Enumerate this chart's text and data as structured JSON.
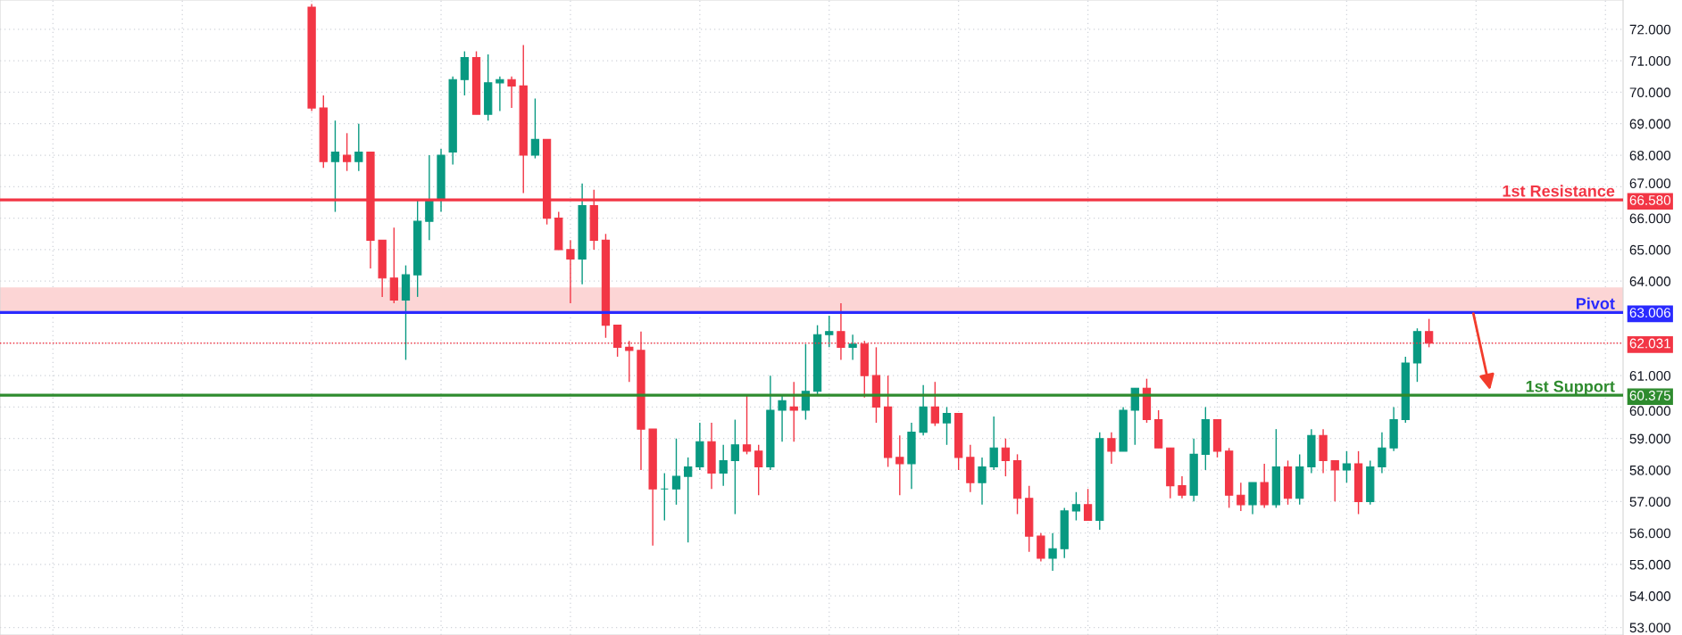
{
  "chart_data": {
    "type": "candlestick",
    "categories": [
      null,
      null,
      null,
      null,
      null,
      null,
      null,
      null,
      null,
      null,
      null,
      null,
      null,
      null,
      null,
      null,
      null,
      null,
      null,
      null,
      null,
      null,
      null,
      null,
      null,
      null,
      null,
      null,
      null,
      null,
      null,
      null,
      null,
      null,
      null,
      null,
      null,
      null,
      null,
      null,
      null,
      null,
      null,
      null,
      null,
      null,
      null,
      null,
      null,
      null,
      null,
      null,
      null,
      null,
      null,
      null,
      null,
      null,
      null,
      null,
      null,
      null,
      null,
      null,
      null,
      null,
      null,
      null,
      null,
      null,
      null,
      null,
      null,
      null,
      null,
      null,
      null,
      null,
      null,
      null,
      null,
      null,
      null,
      null,
      null,
      null,
      null,
      null,
      null,
      null,
      null,
      null,
      null,
      null,
      null,
      null,
      null,
      null,
      null,
      null,
      null,
      null,
      null,
      null,
      null,
      null,
      null,
      null,
      null,
      null,
      null,
      null,
      null,
      null,
      null,
      null,
      null,
      null,
      null,
      null,
      null,
      null,
      null,
      null,
      null,
      null,
      null,
      null,
      null,
      null,
      null,
      null,
      null,
      null,
      null,
      null,
      null,
      null
    ],
    "ohlc": [
      null,
      null,
      null,
      null,
      null,
      null,
      null,
      null,
      null,
      null,
      null,
      null,
      null,
      null,
      null,
      null,
      null,
      null,
      null,
      null,
      null,
      null,
      null,
      null,
      null,
      null,
      [
        72.7,
        72.8,
        69.4,
        69.5
      ],
      [
        69.5,
        69.9,
        67.6,
        67.8
      ],
      [
        67.8,
        69.1,
        66.2,
        68.1
      ],
      [
        68.0,
        68.7,
        67.5,
        67.8
      ],
      [
        67.8,
        69.0,
        67.5,
        68.1
      ],
      [
        68.1,
        68.1,
        64.4,
        65.3
      ],
      [
        65.3,
        65.3,
        63.5,
        64.1
      ],
      [
        64.1,
        65.7,
        63.3,
        63.4
      ],
      [
        63.4,
        64.5,
        61.5,
        64.2
      ],
      [
        64.2,
        66.6,
        63.5,
        65.9
      ],
      [
        65.9,
        68.0,
        65.3,
        66.6
      ],
      [
        66.6,
        68.2,
        66.2,
        68.0
      ],
      [
        68.1,
        70.5,
        67.7,
        70.4
      ],
      [
        70.4,
        71.3,
        69.9,
        71.1
      ],
      [
        71.1,
        71.3,
        69.3,
        69.3
      ],
      [
        69.3,
        71.2,
        69.1,
        70.3
      ],
      [
        70.3,
        70.5,
        69.4,
        70.4
      ],
      [
        70.4,
        70.5,
        69.5,
        70.2
      ],
      [
        70.2,
        71.5,
        66.8,
        68.0
      ],
      [
        68.0,
        69.8,
        67.9,
        68.5
      ],
      [
        68.5,
        68.5,
        65.8,
        66.0
      ],
      [
        66.0,
        66.2,
        65.0,
        65.0
      ],
      [
        65.0,
        65.3,
        63.3,
        64.7
      ],
      [
        64.7,
        67.1,
        63.9,
        66.4
      ],
      [
        66.4,
        66.9,
        65.0,
        65.3
      ],
      [
        65.3,
        65.5,
        62.2,
        62.6
      ],
      [
        62.6,
        62.6,
        61.6,
        61.9
      ],
      [
        61.9,
        62.1,
        60.8,
        61.8
      ],
      [
        61.8,
        62.4,
        58.0,
        59.3
      ],
      [
        59.3,
        59.3,
        55.6,
        57.4
      ],
      [
        57.4,
        57.9,
        56.4,
        57.4
      ],
      [
        57.4,
        59.0,
        56.9,
        57.8
      ],
      [
        57.8,
        58.4,
        55.7,
        58.1
      ],
      [
        58.1,
        59.5,
        58.0,
        58.9
      ],
      [
        58.9,
        59.5,
        57.4,
        57.9
      ],
      [
        57.9,
        58.8,
        57.5,
        58.3
      ],
      [
        58.3,
        59.6,
        56.6,
        58.8
      ],
      [
        58.8,
        60.4,
        58.5,
        58.6
      ],
      [
        58.6,
        58.8,
        57.2,
        58.1
      ],
      [
        58.1,
        61.0,
        58.0,
        59.9
      ],
      [
        59.9,
        60.4,
        58.9,
        60.2
      ],
      [
        60.0,
        60.8,
        58.9,
        59.9
      ],
      [
        59.9,
        62.0,
        59.6,
        60.5
      ],
      [
        60.5,
        62.6,
        60.4,
        62.3
      ],
      [
        62.3,
        62.9,
        61.9,
        62.4
      ],
      [
        62.4,
        63.3,
        61.5,
        61.9
      ],
      [
        61.9,
        62.3,
        61.5,
        62.0
      ],
      [
        62.0,
        62.1,
        60.3,
        61.0
      ],
      [
        61.0,
        61.9,
        59.5,
        60.0
      ],
      [
        60.0,
        61.0,
        58.1,
        58.4
      ],
      [
        58.4,
        59.1,
        57.2,
        58.2
      ],
      [
        58.2,
        59.5,
        57.4,
        59.2
      ],
      [
        59.2,
        60.7,
        59.1,
        60.0
      ],
      [
        60.0,
        60.8,
        59.4,
        59.5
      ],
      [
        59.5,
        60.0,
        58.8,
        59.8
      ],
      [
        59.8,
        59.8,
        58.0,
        58.4
      ],
      [
        58.4,
        58.8,
        57.3,
        57.6
      ],
      [
        57.6,
        58.4,
        56.9,
        58.1
      ],
      [
        58.1,
        59.7,
        58.0,
        58.7
      ],
      [
        58.7,
        59.0,
        57.8,
        58.3
      ],
      [
        58.3,
        58.5,
        56.6,
        57.1
      ],
      [
        57.1,
        57.5,
        55.4,
        55.9
      ],
      [
        55.9,
        56.0,
        55.1,
        55.2
      ],
      [
        55.2,
        56.0,
        54.8,
        55.5
      ],
      [
        55.5,
        56.8,
        55.2,
        56.7
      ],
      [
        56.7,
        57.3,
        56.4,
        56.9
      ],
      [
        56.9,
        57.4,
        56.4,
        56.4
      ],
      [
        56.4,
        59.2,
        56.1,
        59.0
      ],
      [
        59.0,
        59.2,
        58.2,
        58.6
      ],
      [
        58.6,
        60.0,
        58.6,
        59.9
      ],
      [
        59.9,
        60.6,
        58.8,
        60.6
      ],
      [
        60.6,
        60.9,
        59.5,
        59.6
      ],
      [
        59.6,
        59.9,
        58.7,
        58.7
      ],
      [
        58.7,
        58.7,
        57.1,
        57.5
      ],
      [
        57.5,
        57.8,
        57.1,
        57.2
      ],
      [
        57.2,
        59.0,
        57.0,
        58.5
      ],
      [
        58.5,
        60.0,
        58.0,
        59.6
      ],
      [
        59.6,
        59.6,
        58.4,
        58.6
      ],
      [
        58.6,
        58.7,
        56.8,
        57.2
      ],
      [
        57.2,
        57.6,
        56.7,
        56.9
      ],
      [
        56.9,
        57.6,
        56.6,
        57.6
      ],
      [
        57.6,
        58.2,
        56.8,
        56.9
      ],
      [
        56.9,
        59.3,
        56.8,
        58.1
      ],
      [
        58.1,
        58.3,
        56.9,
        57.1
      ],
      [
        57.1,
        58.5,
        56.9,
        58.1
      ],
      [
        58.1,
        59.3,
        57.9,
        59.1
      ],
      [
        59.1,
        59.3,
        57.9,
        58.3
      ],
      [
        58.3,
        58.3,
        57.0,
        58.0
      ],
      [
        58.0,
        58.6,
        57.6,
        58.2
      ],
      [
        58.2,
        58.6,
        56.6,
        57.0
      ],
      [
        57.0,
        58.3,
        56.9,
        58.1
      ],
      [
        58.1,
        59.2,
        57.9,
        58.7
      ],
      [
        58.7,
        60.0,
        58.6,
        59.6
      ],
      [
        59.6,
        61.6,
        59.5,
        61.4
      ],
      [
        61.4,
        62.5,
        60.8,
        62.4
      ],
      [
        62.4,
        62.8,
        61.9,
        62.03
      ],
      null,
      null,
      null,
      null,
      null,
      null,
      null,
      null,
      null,
      null,
      null,
      null,
      null,
      null,
      null,
      null
    ],
    "colors": [
      null,
      null,
      null,
      null,
      null,
      null,
      null,
      null,
      null,
      null,
      null,
      null,
      null,
      null,
      null,
      null,
      null,
      null,
      null,
      null,
      null,
      null,
      null,
      null,
      null,
      null,
      "#f23645",
      "#f23645",
      "#089981",
      "#f23645",
      "#089981",
      "#f23645",
      "#f23645",
      "#f23645",
      "#089981",
      "#089981",
      "#089981",
      "#089981",
      "#089981",
      "#089981",
      "#f23645",
      "#089981",
      "#089981",
      "#f23645",
      "#f23645",
      "#089981",
      "#f23645",
      "#f23645",
      "#f23645",
      "#089981",
      "#f23645",
      "#f23645",
      "#f23645",
      "#f23645",
      "#f23645",
      "#f23645",
      "#089981",
      "#089981",
      "#089981",
      "#089981",
      "#f23645",
      "#089981",
      "#089981",
      "#f23645",
      "#f23645",
      "#089981",
      "#089981",
      "#f23645",
      "#089981",
      "#089981",
      "#089981",
      "#f23645",
      "#089981",
      "#f23645",
      "#f23645",
      "#f23645",
      "#f23645",
      "#089981",
      "#089981",
      "#f23645",
      "#089981",
      "#f23645",
      "#f23645",
      "#089981",
      "#089981",
      "#f23645",
      "#f23645",
      "#f23645",
      "#f23645",
      "#089981",
      "#089981",
      "#089981",
      "#f23645",
      "#089981",
      "#f23645",
      "#089981",
      "#089981",
      "#f23645",
      "#f23645",
      "#f23645",
      "#f23645",
      "#089981",
      "#089981",
      "#f23645",
      "#f23645",
      "#f23645",
      "#089981",
      "#f23645",
      "#089981",
      "#f23645",
      "#089981",
      "#089981",
      "#f23645",
      "#f23645",
      "#089981",
      "#f23645",
      "#089981",
      "#089981",
      "#089981",
      "#089981",
      "#089981",
      "#f23645",
      null,
      null,
      null,
      null,
      null,
      null,
      null,
      null,
      null,
      null,
      null,
      null,
      null,
      null,
      null,
      null
    ],
    "ylim": [
      52.76,
      72.93
    ],
    "yticks": [
      {
        "value": 53,
        "label": "53.000"
      },
      {
        "value": 54,
        "label": "54.000"
      },
      {
        "value": 55,
        "label": "55.000"
      },
      {
        "value": 56,
        "label": "56.000"
      },
      {
        "value": 57,
        "label": "57.000"
      },
      {
        "value": 58,
        "label": "58.000"
      },
      {
        "value": 59,
        "label": "59.000"
      },
      {
        "value": 60,
        "label": "60.000"
      },
      {
        "value": 61,
        "label": "61.000"
      },
      {
        "value": 64,
        "label": "64.000"
      },
      {
        "value": 65,
        "label": "65.000"
      },
      {
        "value": 66,
        "label": "66.000"
      },
      {
        "value": 67,
        "label": "67.000"
      },
      {
        "value": 68,
        "label": "68.000"
      },
      {
        "value": 69,
        "label": "69.000"
      },
      {
        "value": 70,
        "label": "70.000"
      },
      {
        "value": 71,
        "label": "71.000"
      },
      {
        "value": 72,
        "label": "72.000"
      },
      {
        "value": 66.58,
        "label": "66.580"
      },
      {
        "value": 63.006,
        "label": "63.006"
      },
      {
        "value": 62.031,
        "label": "62.031"
      },
      {
        "value": 60.375,
        "label": "60.375"
      }
    ],
    "ref_lines": [
      {
        "axis": "y",
        "value": 66.58,
        "label": "1st Resistance",
        "color": "#f23645"
      },
      {
        "axis": "y",
        "value": 63.006,
        "label": "Pivot",
        "color": "#2a2aff"
      },
      {
        "axis": "y",
        "value": 62.031,
        "color": "#f23645",
        "line_style": "dotted"
      },
      {
        "axis": "y",
        "value": 60.375,
        "label": "1st Support",
        "color": "#2e8b2e"
      }
    ],
    "bands": [
      {
        "axis": "y",
        "from": 63.006,
        "to": 63.8,
        "color": "#fcd5d5"
      }
    ],
    "grid": true,
    "legend": false
  }
}
